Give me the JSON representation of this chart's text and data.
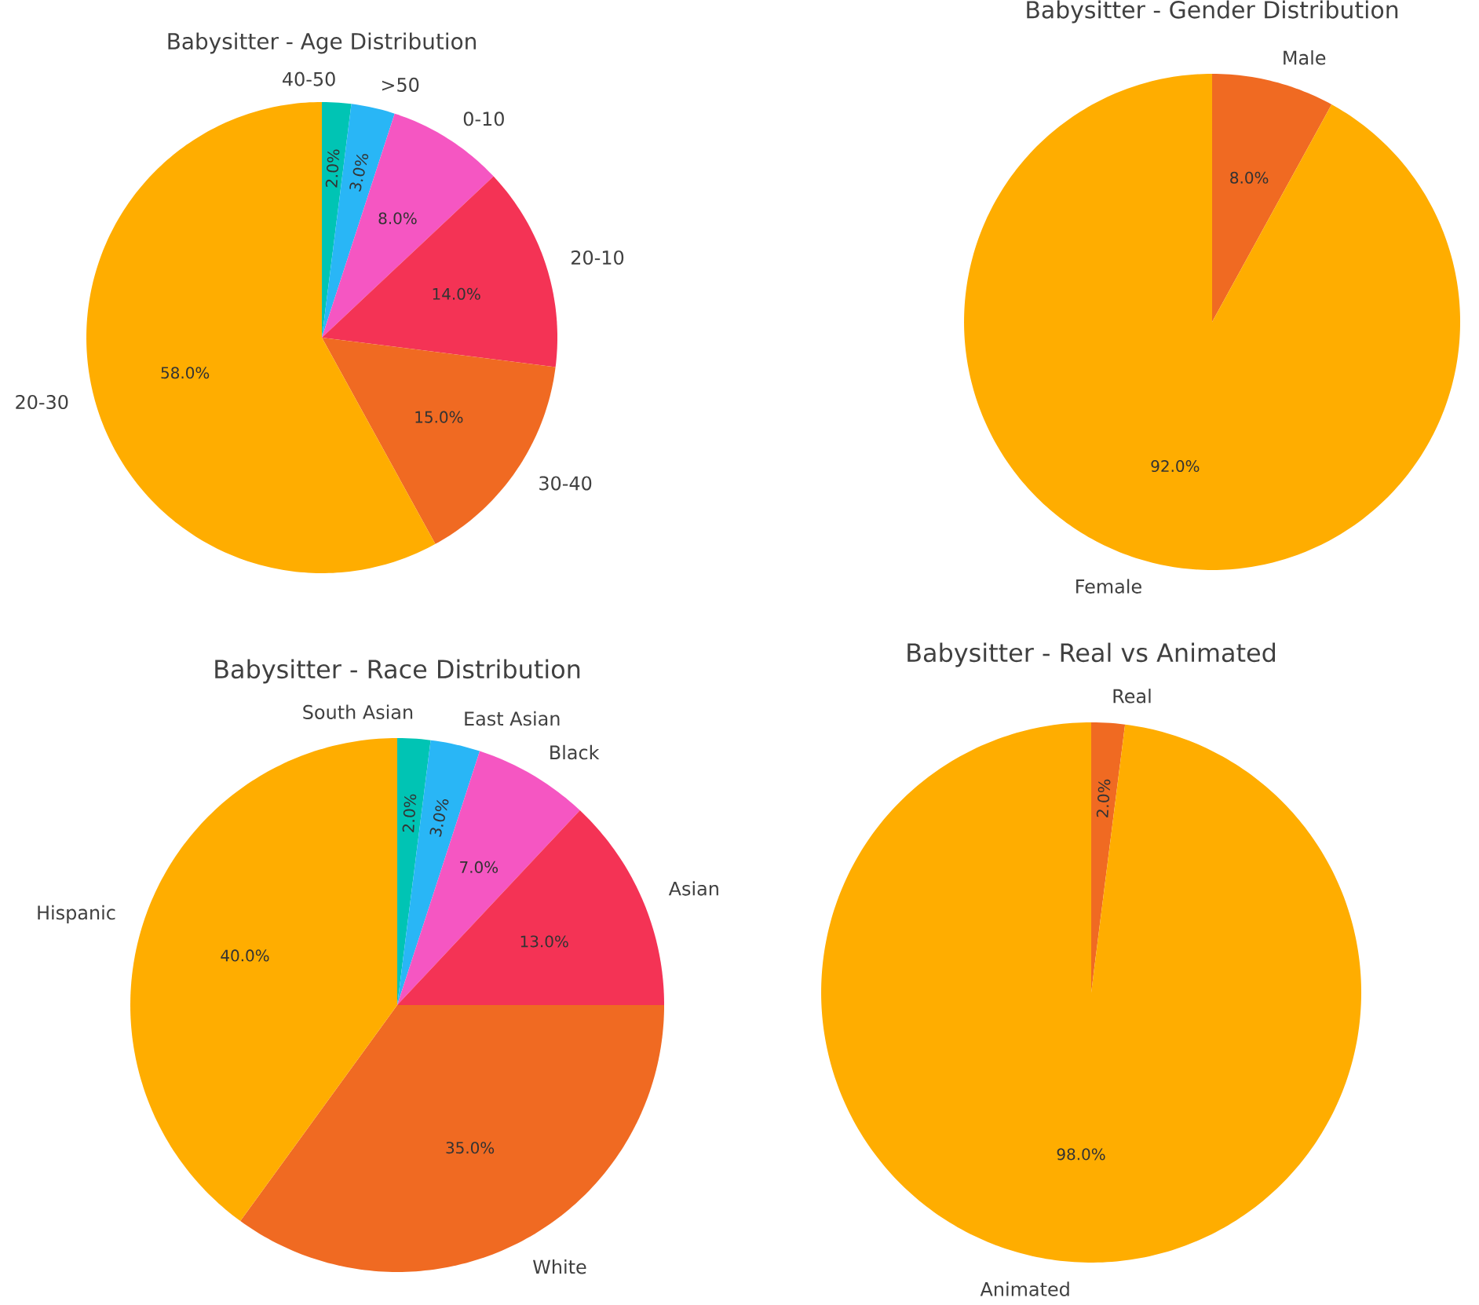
{
  "chart_data": [
    {
      "type": "pie",
      "title": "Babysitter - Age Distribution",
      "categories": [
        "40-50",
        ">50",
        "0-10",
        "20-10",
        "30-40",
        "20-30"
      ],
      "values": [
        2,
        3,
        8,
        14,
        15,
        58
      ],
      "colors": [
        "#00c4b4",
        "#29b6f6",
        "#f556c2",
        "#f43355",
        "#f06a22",
        "#ffad00"
      ],
      "value_labels": [
        "2.0%",
        "3.0%",
        "8.0%",
        "14.0%",
        "15.0%",
        "58.0%"
      ]
    },
    {
      "type": "pie",
      "title": "Babysitter - Gender Distribution",
      "categories": [
        "Male",
        "Female"
      ],
      "values": [
        8,
        92
      ],
      "colors": [
        "#f06a22",
        "#ffad00"
      ],
      "value_labels": [
        "8.0%",
        "92.0%"
      ]
    },
    {
      "type": "pie",
      "title": "Babysitter - Race Distribution",
      "categories": [
        "South Asian",
        "East Asian",
        "Black",
        "Asian",
        "White",
        "Hispanic"
      ],
      "values": [
        2,
        3,
        7,
        13,
        35,
        40
      ],
      "colors": [
        "#00c4b4",
        "#29b6f6",
        "#f556c2",
        "#f43355",
        "#f06a22",
        "#ffad00"
      ],
      "value_labels": [
        "2.0%",
        "3.0%",
        "7.0%",
        "13.0%",
        "35.0%",
        "40.0%"
      ]
    },
    {
      "type": "pie",
      "title": "Babysitter - Real vs Animated",
      "categories": [
        "Real",
        "Animated"
      ],
      "values": [
        2,
        98
      ],
      "colors": [
        "#f06a22",
        "#ffad00"
      ],
      "value_labels": [
        "2.0%",
        "98.0%"
      ]
    }
  ]
}
